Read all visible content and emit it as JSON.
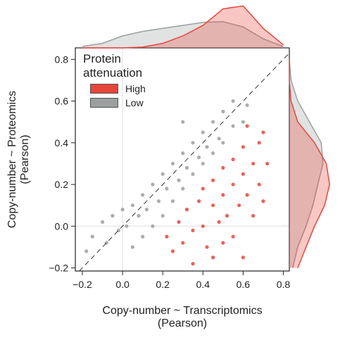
{
  "chart_data": [
    {
      "type": "scatter",
      "xlabel": [
        "Copy-number ~ Transcriptomics",
        "(Pearson)"
      ],
      "ylabel": [
        "Copy-number ~ Proteomics",
        "(Pearson)"
      ],
      "legend_title": "Protein attenuation",
      "xlim": [
        -0.235,
        0.83
      ],
      "ylim": [
        -0.215,
        0.855
      ],
      "xticks": [
        {
          "value": -0.2,
          "label": "−0.2"
        },
        {
          "value": 0,
          "label": "0.0"
        },
        0.2,
        0.4,
        0.6,
        0.8
      ],
      "yticks": [
        {
          "value": -0.2,
          "label": "−0.2"
        },
        {
          "value": 0,
          "label": "0.0"
        },
        0.2,
        0.4,
        0.6,
        0.8
      ],
      "diagonal": true,
      "series": [
        {
          "name": "High",
          "color": "#e8463a",
          "x": [
            0.22,
            0.25,
            0.28,
            0.3,
            0.32,
            0.35,
            0.38,
            0.4,
            0.4,
            0.42,
            0.45,
            0.45,
            0.48,
            0.5,
            0.5,
            0.52,
            0.55,
            0.55,
            0.58,
            0.6,
            0.6,
            0.62,
            0.65,
            0.65,
            0.68,
            0.68,
            0.7,
            0.72,
            0.55,
            0.6,
            0.45,
            0.35,
            0.7,
            0.62,
            0.5
          ],
          "y": [
            -0.05,
            -0.12,
            0.02,
            -0.08,
            0.08,
            -0.02,
            0.12,
            0.0,
            0.18,
            -0.1,
            0.1,
            0.22,
            0.02,
            0.15,
            0.28,
            0.05,
            0.2,
            0.32,
            0.1,
            0.25,
            0.38,
            0.15,
            0.3,
            0.05,
            0.4,
            0.2,
            0.12,
            0.3,
            -0.05,
            -0.15,
            -0.15,
            -0.18,
            0.45,
            0.48,
            -0.08
          ]
        },
        {
          "name": "Low",
          "color": "#9aa0a0",
          "x": [
            -0.15,
            -0.1,
            -0.08,
            -0.05,
            -0.02,
            0.0,
            0.02,
            0.05,
            0.05,
            0.08,
            0.1,
            0.12,
            0.15,
            0.15,
            0.18,
            0.2,
            0.2,
            0.22,
            0.25,
            0.25,
            0.28,
            0.3,
            0.3,
            0.32,
            0.35,
            0.35,
            0.38,
            0.4,
            0.4,
            0.42,
            0.45,
            0.45,
            0.48,
            0.5,
            0.5,
            0.55,
            0.55,
            0.6,
            0.62,
            0.3,
            -0.18,
            0.1
          ],
          "y": [
            -0.05,
            0.02,
            -0.08,
            0.05,
            -0.02,
            0.08,
            0.0,
            0.1,
            -0.1,
            0.05,
            0.15,
            0.08,
            0.0,
            0.2,
            0.12,
            0.25,
            0.05,
            0.18,
            0.3,
            0.12,
            0.22,
            0.35,
            0.18,
            0.28,
            0.4,
            0.25,
            0.33,
            0.45,
            0.3,
            0.38,
            0.5,
            0.35,
            0.42,
            0.55,
            0.4,
            0.48,
            0.6,
            0.5,
            0.58,
            0.5,
            -0.12,
            -0.05
          ]
        }
      ]
    },
    {
      "type": "area",
      "orientation": "horizontal",
      "x": [
        -0.2,
        -0.1,
        0.0,
        0.1,
        0.2,
        0.3,
        0.4,
        0.5,
        0.6,
        0.7,
        0.8
      ],
      "ylim": [
        0,
        3.1
      ],
      "series": [
        {
          "name": "Low",
          "color": "#9aa0a0",
          "values": [
            0.1,
            0.3,
            0.8,
            1.1,
            1.3,
            1.5,
            1.7,
            1.75,
            1.4,
            0.6,
            0.1
          ]
        },
        {
          "name": "High",
          "color": "#e8463a",
          "values": [
            0,
            0,
            0,
            0.05,
            0.3,
            0.8,
            1.5,
            2.6,
            2.8,
            1.3,
            0.2
          ]
        }
      ]
    },
    {
      "type": "area",
      "orientation": "vertical",
      "x": [
        -0.2,
        -0.1,
        0.0,
        0.1,
        0.2,
        0.3,
        0.4,
        0.5,
        0.6,
        0.7,
        0.8
      ],
      "ylim": [
        0,
        2.6
      ],
      "series": [
        {
          "name": "Low",
          "color": "#9aa0a0",
          "values": [
            0.2,
            0.5,
            1.0,
            1.4,
            1.7,
            2.0,
            1.9,
            1.2,
            0.5,
            0.1,
            0
          ]
        },
        {
          "name": "High",
          "color": "#e8463a",
          "values": [
            0.5,
            1.0,
            1.5,
            2.1,
            2.4,
            2.2,
            1.5,
            0.5,
            0.1,
            0,
            0
          ]
        }
      ]
    }
  ]
}
